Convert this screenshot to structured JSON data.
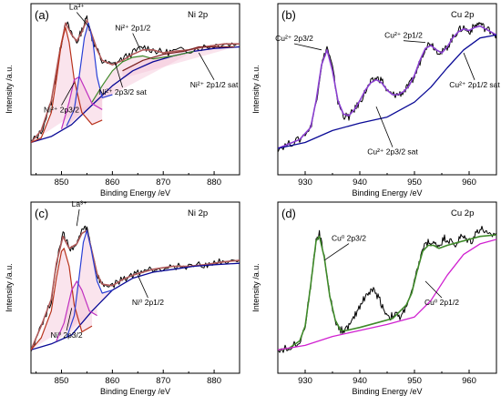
{
  "chart_data": [
    {
      "panel": "(a)",
      "title": "Ni 2p",
      "type": "line",
      "xlabel": "Binding Energy /eV",
      "ylabel": "Intensity /a.u.",
      "xlim": [
        844,
        885
      ],
      "ylim": [
        0,
        1
      ],
      "xticks": [
        850,
        860,
        870,
        880
      ],
      "annotations": [
        {
          "text": "La³⁺",
          "x": 855.5,
          "y": 0.95,
          "tx": 853,
          "ty": 1.07
        },
        {
          "text": "Ni²⁺ 2p1/2",
          "x": 865.5,
          "y": 0.8,
          "tx": 864,
          "ty": 0.93
        },
        {
          "text": "Ni²⁺ 2p3/2",
          "x": 852.5,
          "y": 0.58,
          "tx": 850,
          "ty": 0.38
        },
        {
          "text": "Ni²⁺ 2p3/2 sat",
          "x": 860.5,
          "y": 0.72,
          "tx": 862,
          "ty": 0.5
        },
        {
          "text": "Ni²⁺ 2p1/2 sat",
          "x": 877,
          "y": 0.78,
          "tx": 880,
          "ty": 0.55
        }
      ],
      "series": [
        {
          "role": "data",
          "x": [
            844,
            846,
            848,
            849.5,
            850.8,
            852,
            853,
            854,
            855,
            856,
            857,
            858,
            860,
            862,
            864,
            866,
            868,
            870,
            872,
            875,
            878,
            880,
            882,
            885
          ],
          "y": [
            0.18,
            0.25,
            0.45,
            0.75,
            1.0,
            0.9,
            0.85,
            0.93,
            1.02,
            0.88,
            0.8,
            0.72,
            0.7,
            0.74,
            0.78,
            0.82,
            0.8,
            0.78,
            0.79,
            0.8,
            0.82,
            0.83,
            0.84,
            0.84
          ]
        },
        {
          "role": "envelope",
          "x": [
            844,
            846,
            848,
            849.5,
            850.8,
            852,
            853,
            854,
            855,
            856,
            857,
            858,
            860,
            862,
            864,
            866,
            868,
            870,
            872,
            875,
            878,
            880,
            882,
            885
          ],
          "y": [
            0.18,
            0.26,
            0.46,
            0.76,
            0.98,
            0.9,
            0.86,
            0.92,
            1.0,
            0.9,
            0.8,
            0.73,
            0.7,
            0.73,
            0.77,
            0.8,
            0.8,
            0.78,
            0.79,
            0.8,
            0.82,
            0.83,
            0.84,
            0.84
          ]
        },
        {
          "role": "background",
          "x": [
            844,
            848,
            852,
            856,
            860,
            864,
            868,
            872,
            876,
            880,
            885
          ],
          "y": [
            0.18,
            0.22,
            0.3,
            0.43,
            0.56,
            0.66,
            0.72,
            0.76,
            0.79,
            0.81,
            0.82
          ]
        },
        {
          "role": "component",
          "x": [
            844,
            846,
            848,
            849,
            850,
            850.8,
            851.5,
            852.5,
            854,
            856,
            858
          ],
          "y": [
            0.18,
            0.21,
            0.38,
            0.6,
            0.85,
            0.95,
            0.85,
            0.6,
            0.38,
            0.3,
            0.33
          ]
        },
        {
          "role": "component",
          "x": [
            850,
            851.5,
            852.5,
            853.5,
            854.5,
            856,
            858
          ],
          "y": [
            0.27,
            0.45,
            0.6,
            0.62,
            0.55,
            0.44,
            0.4
          ]
        },
        {
          "role": "component",
          "x": [
            851,
            852.5,
            853.5,
            854.5,
            855.3,
            856.2,
            857,
            858,
            860
          ],
          "y": [
            0.29,
            0.4,
            0.63,
            0.88,
            0.98,
            0.85,
            0.62,
            0.48,
            0.5
          ]
        },
        {
          "role": "component",
          "x": [
            856,
            858,
            860,
            862,
            864,
            866,
            868,
            872,
            876
          ],
          "y": [
            0.45,
            0.56,
            0.66,
            0.72,
            0.75,
            0.76,
            0.74,
            0.76,
            0.79
          ]
        },
        {
          "role": "component",
          "x": [
            862,
            866,
            870,
            874,
            877,
            880,
            884
          ],
          "y": [
            0.66,
            0.73,
            0.77,
            0.79,
            0.82,
            0.82,
            0.82
          ]
        }
      ]
    },
    {
      "panel": "(b)",
      "title": "Cu 2p",
      "type": "line",
      "xlabel": "Binding Energy /eV",
      "ylabel": "",
      "xlim": [
        925,
        965
      ],
      "ylim": [
        0,
        1
      ],
      "xticks": [
        930,
        940,
        950,
        960
      ],
      "annotations": [
        {
          "text": "Cu²⁺ 2p3/2",
          "x": 933,
          "y": 0.8,
          "tx": 928,
          "ty": 0.86
        },
        {
          "text": "Cu²⁺ 2p1/2",
          "x": 952,
          "y": 0.85,
          "tx": 948,
          "ty": 0.88
        },
        {
          "text": "Cu²⁺ 2p1/2 sat",
          "x": 959,
          "y": 0.78,
          "tx": 961,
          "ty": 0.55
        },
        {
          "text": "Cu²⁺ 2p3/2 sat",
          "x": 943,
          "y": 0.42,
          "tx": 946,
          "ty": 0.1
        }
      ],
      "series": [
        {
          "role": "data",
          "x": [
            925,
            927,
            929,
            931,
            932,
            933,
            934,
            935,
            936,
            937,
            938,
            939,
            940,
            941,
            942,
            943,
            944,
            945,
            946,
            947,
            948,
            949,
            950,
            951,
            952,
            953,
            954,
            955,
            956,
            957,
            958,
            959,
            960,
            961,
            962,
            963,
            964,
            965
          ],
          "y": [
            0.14,
            0.17,
            0.2,
            0.28,
            0.45,
            0.7,
            0.82,
            0.68,
            0.45,
            0.36,
            0.35,
            0.4,
            0.45,
            0.52,
            0.58,
            0.61,
            0.6,
            0.52,
            0.5,
            0.5,
            0.52,
            0.56,
            0.62,
            0.72,
            0.82,
            0.85,
            0.8,
            0.78,
            0.82,
            0.88,
            0.93,
            0.95,
            0.92,
            0.96,
            0.98,
            0.94,
            0.93,
            0.9
          ]
        },
        {
          "role": "envelope",
          "x": [
            925,
            927,
            929,
            931,
            932,
            933,
            934,
            935,
            936,
            937,
            938,
            939,
            940,
            941,
            942,
            943,
            944,
            945,
            946,
            947,
            948,
            949,
            950,
            951,
            952,
            953,
            954,
            955,
            956,
            957,
            958,
            959,
            960,
            961,
            962,
            963,
            964,
            965
          ],
          "y": [
            0.14,
            0.17,
            0.2,
            0.28,
            0.46,
            0.7,
            0.8,
            0.66,
            0.46,
            0.37,
            0.36,
            0.4,
            0.46,
            0.53,
            0.58,
            0.6,
            0.58,
            0.53,
            0.5,
            0.5,
            0.52,
            0.56,
            0.63,
            0.73,
            0.81,
            0.83,
            0.8,
            0.78,
            0.82,
            0.88,
            0.92,
            0.94,
            0.93,
            0.95,
            0.96,
            0.94,
            0.92,
            0.9
          ]
        },
        {
          "role": "background",
          "x": [
            925,
            930,
            935,
            940,
            945,
            950,
            953,
            956,
            959,
            962,
            965
          ],
          "y": [
            0.14,
            0.18,
            0.26,
            0.31,
            0.35,
            0.45,
            0.55,
            0.68,
            0.8,
            0.88,
            0.9
          ]
        }
      ]
    },
    {
      "panel": "(c)",
      "title": "Ni 2p",
      "type": "line",
      "xlabel": "Binding Energy /eV",
      "ylabel": "Intensity /a.u.",
      "xlim": [
        844,
        885
      ],
      "ylim": [
        0,
        1
      ],
      "xticks": [
        850,
        860,
        870,
        880
      ],
      "annotations": [
        {
          "text": "La³⁺",
          "x": 853,
          "y": 0.95,
          "tx": 853.5,
          "ty": 1.08
        },
        {
          "text": "Ni⁰ 2p1/2",
          "x": 865,
          "y": 0.62,
          "tx": 867,
          "ty": 0.42
        },
        {
          "text": "Ni⁰ 2p3/2",
          "x": 852,
          "y": 0.4,
          "tx": 851,
          "ty": 0.2
        }
      ],
      "series": [
        {
          "role": "data",
          "x": [
            844,
            846,
            848,
            849,
            850.3,
            851.5,
            853,
            854,
            855,
            856,
            857,
            858,
            860,
            862,
            864,
            866,
            868,
            870,
            872,
            875,
            878,
            880,
            882,
            885
          ],
          "y": [
            0.12,
            0.28,
            0.45,
            0.7,
            0.9,
            0.8,
            0.82,
            0.92,
            0.93,
            0.78,
            0.62,
            0.55,
            0.55,
            0.59,
            0.62,
            0.65,
            0.66,
            0.67,
            0.68,
            0.68,
            0.69,
            0.7,
            0.72,
            0.72
          ]
        },
        {
          "role": "envelope",
          "x": [
            844,
            846,
            848,
            849,
            850.3,
            851.5,
            853,
            854,
            855,
            856,
            857,
            858,
            860,
            862,
            864,
            866,
            868,
            870,
            872,
            875,
            878,
            880,
            882,
            885
          ],
          "y": [
            0.12,
            0.28,
            0.46,
            0.7,
            0.88,
            0.8,
            0.83,
            0.9,
            0.92,
            0.78,
            0.63,
            0.56,
            0.55,
            0.59,
            0.62,
            0.64,
            0.66,
            0.67,
            0.68,
            0.68,
            0.69,
            0.7,
            0.71,
            0.72
          ]
        },
        {
          "role": "background",
          "x": [
            844,
            848,
            852,
            856,
            860,
            864,
            868,
            872,
            876,
            880,
            885
          ],
          "y": [
            0.12,
            0.16,
            0.22,
            0.38,
            0.52,
            0.6,
            0.64,
            0.66,
            0.68,
            0.69,
            0.7
          ]
        },
        {
          "role": "component",
          "x": [
            844,
            846,
            848,
            849,
            850,
            850.5,
            851.5,
            852.5,
            854,
            856
          ],
          "y": [
            0.12,
            0.2,
            0.38,
            0.6,
            0.78,
            0.8,
            0.68,
            0.42,
            0.24,
            0.28
          ]
        },
        {
          "role": "component",
          "x": [
            849,
            850.5,
            852,
            853,
            854,
            855.5,
            857
          ],
          "y": [
            0.18,
            0.3,
            0.52,
            0.58,
            0.52,
            0.38,
            0.35
          ]
        },
        {
          "role": "component",
          "x": [
            851,
            852.5,
            853.5,
            854.3,
            855,
            855.8,
            857,
            858,
            860
          ],
          "y": [
            0.2,
            0.35,
            0.62,
            0.84,
            0.92,
            0.8,
            0.58,
            0.5,
            0.52
          ]
        }
      ]
    },
    {
      "panel": "(d)",
      "title": "Cu 2p",
      "type": "line",
      "xlabel": "Binding Energy /eV",
      "ylabel": "",
      "xlim": [
        925,
        965
      ],
      "ylim": [
        0,
        1
      ],
      "xticks": [
        930,
        940,
        950,
        960
      ],
      "annotations": [
        {
          "text": "Cu⁰ 2p3/2",
          "x": 933.5,
          "y": 0.72,
          "tx": 938,
          "ty": 0.85
        },
        {
          "text": "Cu⁰ 2p1/2",
          "x": 952,
          "y": 0.58,
          "tx": 955,
          "ty": 0.42
        }
      ],
      "series": [
        {
          "role": "data",
          "x": [
            925,
            927,
            929,
            930,
            931,
            932,
            932.6,
            933.5,
            934.5,
            935.5,
            936.5,
            937.5,
            938.5,
            939.5,
            940.5,
            941.5,
            942.5,
            943.5,
            944.5,
            945.5,
            946.5,
            947.5,
            948.5,
            949.5,
            950.5,
            951.5,
            952.5,
            953.5,
            954.5,
            955.5,
            956.5,
            957.5,
            958.5,
            959.5,
            960.5,
            961.5,
            962.5,
            963.5,
            965
          ],
          "y": [
            0.12,
            0.13,
            0.18,
            0.28,
            0.55,
            0.85,
            0.9,
            0.75,
            0.48,
            0.32,
            0.25,
            0.26,
            0.3,
            0.38,
            0.45,
            0.5,
            0.52,
            0.47,
            0.38,
            0.34,
            0.36,
            0.33,
            0.42,
            0.5,
            0.65,
            0.8,
            0.84,
            0.83,
            0.82,
            0.87,
            0.85,
            0.82,
            0.88,
            0.86,
            0.85,
            0.92,
            0.93,
            0.88,
            0.9
          ]
        },
        {
          "role": "envelope",
          "x": [
            925,
            927,
            929,
            930,
            931,
            932,
            932.6,
            933.5,
            934.5,
            935.5,
            936.5,
            937.5,
            940,
            943,
            946,
            948.5,
            949.5,
            950.5,
            951.5,
            952.5,
            953.5,
            954.5,
            956,
            958,
            960,
            962,
            965
          ],
          "y": [
            0.12,
            0.13,
            0.18,
            0.28,
            0.55,
            0.85,
            0.88,
            0.74,
            0.48,
            0.32,
            0.25,
            0.25,
            0.27,
            0.3,
            0.33,
            0.42,
            0.5,
            0.65,
            0.78,
            0.82,
            0.82,
            0.8,
            0.82,
            0.84,
            0.86,
            0.88,
            0.89
          ]
        },
        {
          "role": "background",
          "x": [
            925,
            930,
            935,
            940,
            945,
            950,
            953,
            956,
            959,
            962,
            965
          ],
          "y": [
            0.12,
            0.15,
            0.21,
            0.25,
            0.29,
            0.34,
            0.45,
            0.62,
            0.76,
            0.83,
            0.86
          ]
        }
      ]
    }
  ],
  "colors": {
    "data": "#000000",
    "background": "#0a0a96",
    "envelope_ni": "#b05a5a",
    "envelope_b": "#8a3fd0",
    "envelope_d": "#3f8a2a",
    "background_d": "#d020d0",
    "components": [
      "#b8331c",
      "#c02fc0",
      "#2a3fd6",
      "#3f8a2a",
      "#7a2020"
    ]
  }
}
